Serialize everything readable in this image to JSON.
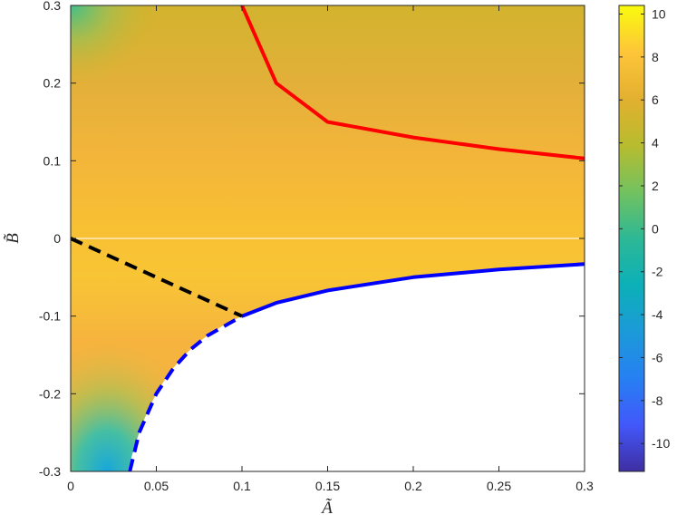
{
  "chart_data": {
    "type": "heatmap",
    "title": "",
    "xlabel": "Ã",
    "ylabel": "B̃",
    "xlim": [
      0,
      0.3
    ],
    "ylim": [
      -0.3,
      0.3
    ],
    "x_ticks": [
      "0",
      "0.05",
      "0.1",
      "0.15",
      "0.2",
      "0.25",
      "0.3"
    ],
    "x_tick_values": [
      0,
      0.05,
      0.1,
      0.15,
      0.2,
      0.25,
      0.3
    ],
    "y_ticks": [
      "-0.3",
      "-0.2",
      "-0.1",
      "0",
      "0.1",
      "0.2",
      "0.3"
    ],
    "y_tick_values": [
      -0.3,
      -0.2,
      -0.1,
      0,
      0.1,
      0.2,
      0.3
    ],
    "colorbar": {
      "colormap": "parula",
      "limits": [
        -11.3,
        10.4
      ],
      "ticks": [
        "10",
        "8",
        "6",
        "4",
        "2",
        "0",
        "-2",
        "-4",
        "-6",
        "-8",
        "-10"
      ],
      "tick_values": [
        10,
        8,
        6,
        4,
        2,
        0,
        -2,
        -4,
        -6,
        -8,
        -10
      ]
    },
    "grid": false,
    "boundary": "A*B = -0.01 (white region below)",
    "series": [
      {
        "style": "solid",
        "color": "#ff0000",
        "x": [
          0.1,
          0.12,
          0.15,
          0.2,
          0.25,
          0.3
        ],
        "y": [
          0.3,
          0.2,
          0.15,
          0.13,
          0.115,
          0.103
        ]
      },
      {
        "style": "solid",
        "color": "#0000ff",
        "x": [
          0.1,
          0.12,
          0.15,
          0.2,
          0.25,
          0.3
        ],
        "y": [
          -0.1,
          -0.083,
          -0.067,
          -0.05,
          -0.04,
          -0.033
        ]
      },
      {
        "style": "dashed",
        "color": "#0000ff",
        "x": [
          0.0345,
          0.04,
          0.05,
          0.06,
          0.07,
          0.08,
          0.1
        ],
        "y": [
          -0.3,
          -0.25,
          -0.2,
          -0.167,
          -0.143,
          -0.125,
          -0.1
        ]
      },
      {
        "style": "dashed",
        "color": "#000000",
        "x": [
          0,
          0.1
        ],
        "y": [
          0,
          -0.1
        ]
      },
      {
        "style": "solid",
        "color": "#ffffff",
        "x": [
          0,
          0.3
        ],
        "y": [
          0,
          0
        ]
      }
    ]
  }
}
